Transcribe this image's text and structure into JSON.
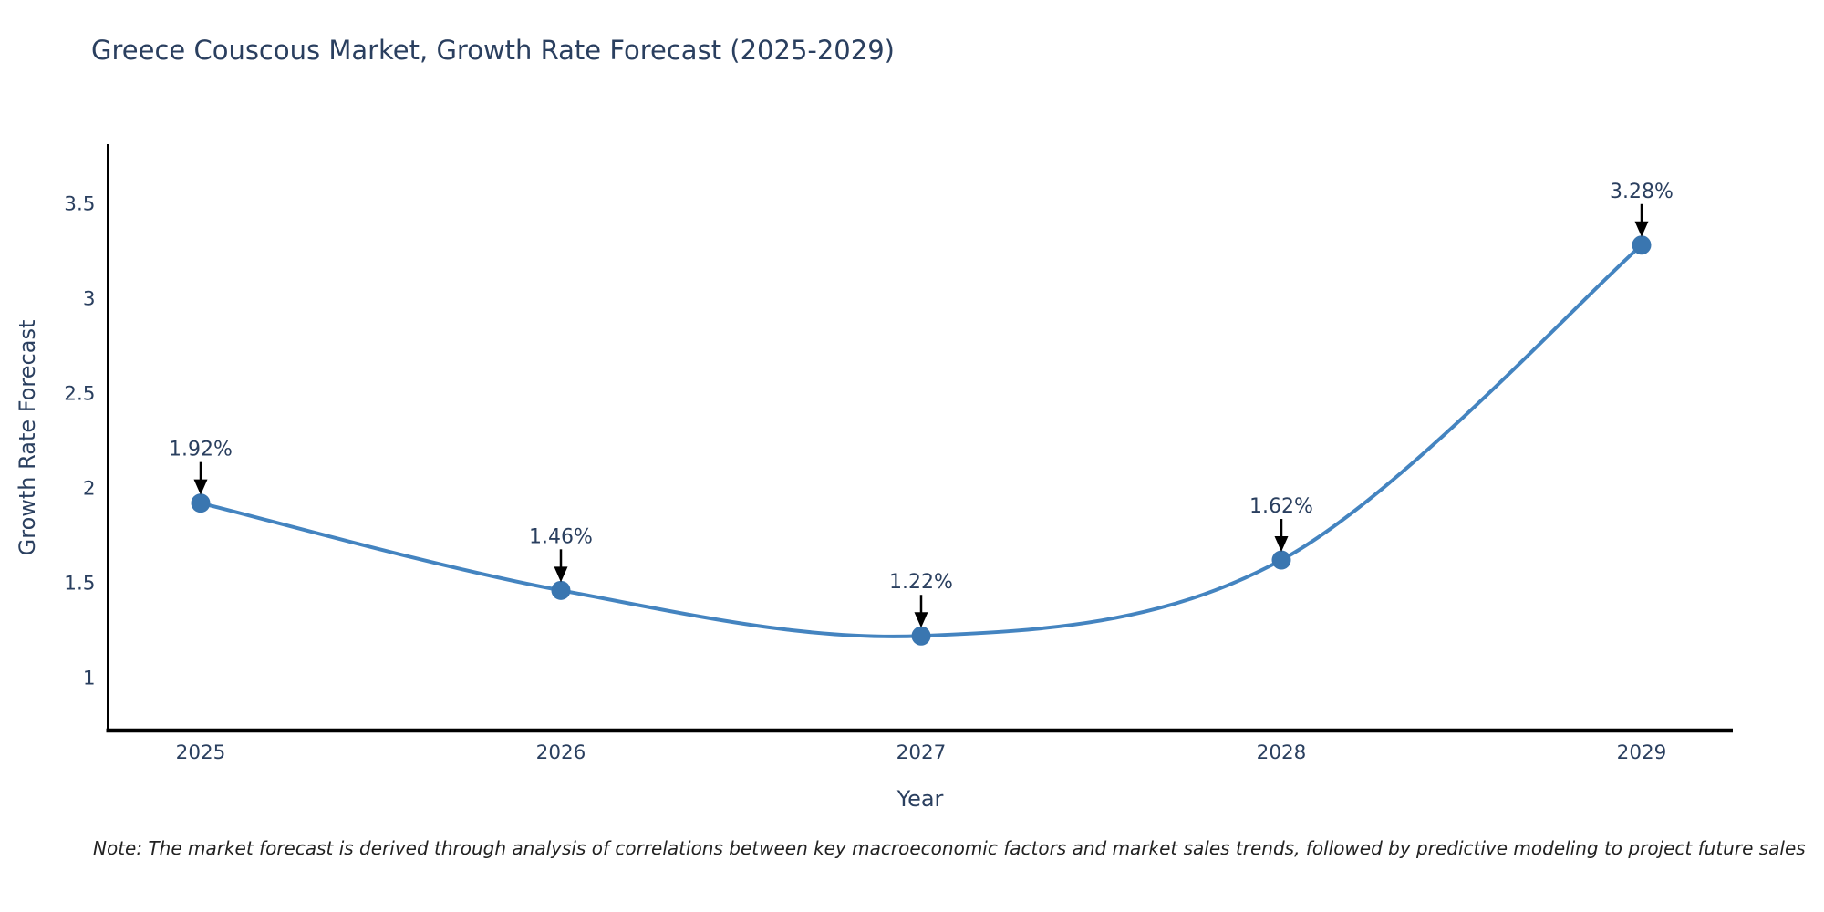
{
  "note": "Note: The market forecast is derived through analysis of correlations between key macroeconomic factors and market sales trends, followed by predictive modeling to project future sales",
  "chart_data": {
    "type": "line",
    "title": "Greece Couscous Market, Growth Rate Forecast (2025-2029)",
    "xlabel": "Year",
    "ylabel": "Growth Rate Forecast",
    "x": [
      2025,
      2026,
      2027,
      2028,
      2029
    ],
    "series": [
      {
        "name": "Growth Rate Forecast",
        "values": [
          1.92,
          1.46,
          1.22,
          1.62,
          3.28
        ]
      }
    ],
    "point_labels": [
      "1.92%",
      "1.46%",
      "1.22%",
      "1.62%",
      "3.28%"
    ],
    "yticks": [
      1,
      1.5,
      2,
      2.5,
      3,
      3.5
    ],
    "ylim": [
      0.72,
      3.8
    ],
    "grid": false,
    "line_shape": "spline",
    "legend_position": "none",
    "annotations": "black arrows pointing down from each percentage label to its data point",
    "colors": {
      "line": "#4484c0",
      "marker": "#3a76b0",
      "axis": "#000000",
      "text": "#2a3f5f",
      "arrow": "#000000",
      "note_text": "#222222",
      "background": "#ffffff"
    }
  }
}
